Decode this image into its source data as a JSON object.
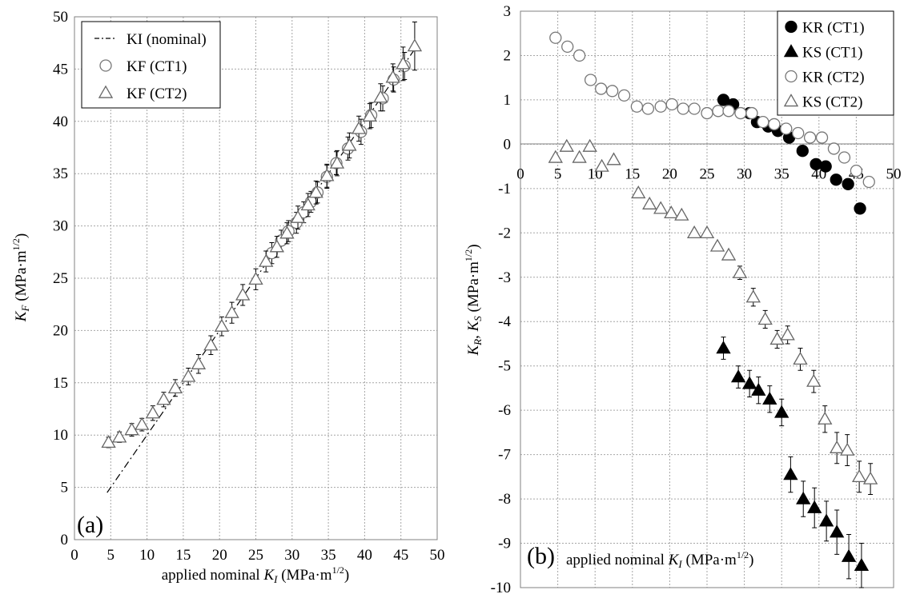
{
  "figure": {
    "panel_a": {
      "panel_label": "(a)",
      "xlabel": "applied nominal K_I (MPa·m^1/2)",
      "ylabel": "K_F (MPa·m^1/2)"
    },
    "panel_b": {
      "panel_label": "(b)",
      "xlabel": "applied nominal K_I (MPa·m^1/2)",
      "ylabel": "K_R, K_S (MPa·m^1/2)"
    }
  },
  "chart_data": [
    {
      "type": "scatter",
      "panel": "(a)",
      "title": "",
      "xlabel": "applied nominal K_I (MPa·m^1/2)",
      "ylabel": "K_F (MPa·m^1/2)",
      "xlim": [
        0,
        50
      ],
      "ylim": [
        0,
        50
      ],
      "xticks": [
        0,
        5,
        10,
        15,
        20,
        25,
        30,
        35,
        40,
        45,
        50
      ],
      "yticks": [
        0,
        5,
        10,
        15,
        20,
        25,
        30,
        35,
        40,
        45,
        50
      ],
      "grid": "dotted",
      "legend_position": "top-left",
      "series": [
        {
          "name": "KI (nominal)",
          "marker": "dash-dot-line",
          "color": "#000000",
          "points": [
            [
              4.5,
              4.5
            ],
            [
              47,
              47
            ]
          ]
        },
        {
          "name": "KF (CT1)",
          "marker": "open-circle",
          "color": "#000000",
          "points": [
            [
              27.2,
              27.4,
              1.0
            ],
            [
              28.5,
              28.6,
              1.0
            ],
            [
              29.5,
              29.5,
              1.0
            ],
            [
              30.6,
              30.3,
              1.0
            ],
            [
              31.6,
              31.3,
              1.0
            ],
            [
              32.6,
              32.3,
              1.0
            ],
            [
              33.5,
              33.2,
              1.0
            ],
            [
              34.8,
              34.7,
              1.1
            ],
            [
              36.1,
              36.0,
              1.1
            ],
            [
              37.7,
              37.4,
              1.1
            ],
            [
              39.5,
              39.0,
              1.2
            ],
            [
              40.9,
              40.6,
              1.2
            ],
            [
              42.5,
              42.2,
              1.2
            ],
            [
              44.0,
              44.0,
              1.2
            ],
            [
              45.5,
              45.3,
              1.3
            ]
          ]
        },
        {
          "name": "KF (CT2)",
          "marker": "open-triangle",
          "color": "#000000",
          "points": [
            [
              4.7,
              9.3,
              0.5
            ],
            [
              6.2,
              9.8,
              0.5
            ],
            [
              7.9,
              10.5,
              0.6
            ],
            [
              9.3,
              11.0,
              0.6
            ],
            [
              10.8,
              12.1,
              0.7
            ],
            [
              12.3,
              13.4,
              0.7
            ],
            [
              13.9,
              14.5,
              0.8
            ],
            [
              15.7,
              15.6,
              0.8
            ],
            [
              17.1,
              16.8,
              0.9
            ],
            [
              18.8,
              18.6,
              0.9
            ],
            [
              20.3,
              20.4,
              0.9
            ],
            [
              21.7,
              21.7,
              1.0
            ],
            [
              23.2,
              23.4,
              1.0
            ],
            [
              25.0,
              24.9,
              1.0
            ],
            [
              26.4,
              26.6,
              1.0
            ],
            [
              27.9,
              28.0,
              1.0
            ],
            [
              29.3,
              29.3,
              1.0
            ],
            [
              30.8,
              30.8,
              1.1
            ],
            [
              32.2,
              32.0,
              1.1
            ],
            [
              33.3,
              33.2,
              1.1
            ],
            [
              34.8,
              34.8,
              1.1
            ],
            [
              36.2,
              36.0,
              1.2
            ],
            [
              37.9,
              37.7,
              1.2
            ],
            [
              39.2,
              39.3,
              1.2
            ],
            [
              40.7,
              40.5,
              1.2
            ],
            [
              42.2,
              42.3,
              1.3
            ],
            [
              43.9,
              44.2,
              1.3
            ],
            [
              45.3,
              45.5,
              1.6
            ],
            [
              46.9,
              47.2,
              2.3
            ]
          ]
        }
      ],
      "point_format": "[x, y, error_bar_halfwidth]"
    },
    {
      "type": "scatter",
      "panel": "(b)",
      "title": "",
      "xlabel": "applied nominal K_I (MPa·m^1/2)",
      "ylabel": "K_R, K_S (MPa·m^1/2)",
      "xlim": [
        0,
        50
      ],
      "ylim": [
        -10,
        3
      ],
      "xticks": [
        0,
        5,
        10,
        15,
        20,
        25,
        30,
        35,
        40,
        45,
        50
      ],
      "yticks": [
        -10,
        -9,
        -8,
        -7,
        -6,
        -5,
        -4,
        -3,
        -2,
        -1,
        0,
        1,
        2,
        3
      ],
      "x_axis_crosses_at": 0,
      "grid": "dotted",
      "legend_position": "top-right",
      "series": [
        {
          "name": "KR (CT1)",
          "marker": "filled-circle",
          "color": "#000000",
          "points": [
            [
              27.2,
              1.0,
              0
            ],
            [
              28.5,
              0.9,
              0
            ],
            [
              30.7,
              0.7,
              0
            ],
            [
              31.7,
              0.5,
              0
            ],
            [
              33.2,
              0.4,
              0
            ],
            [
              34.5,
              0.3,
              0
            ],
            [
              36.0,
              0.15,
              0
            ],
            [
              37.8,
              -0.15,
              0
            ],
            [
              39.6,
              -0.45,
              0
            ],
            [
              40.9,
              -0.5,
              0
            ],
            [
              42.3,
              -0.8,
              0
            ],
            [
              43.9,
              -0.9,
              0
            ],
            [
              45.5,
              -1.45,
              0
            ]
          ]
        },
        {
          "name": "KS (CT1)",
          "marker": "filled-triangle",
          "color": "#000000",
          "points": [
            [
              27.2,
              -4.6,
              0.25
            ],
            [
              29.2,
              -5.25,
              0.25
            ],
            [
              30.7,
              -5.4,
              0.3
            ],
            [
              31.9,
              -5.55,
              0.3
            ],
            [
              33.4,
              -5.75,
              0.3
            ],
            [
              35.0,
              -6.05,
              0.3
            ],
            [
              36.2,
              -7.45,
              0.4
            ],
            [
              37.9,
              -8.0,
              0.4
            ],
            [
              39.4,
              -8.2,
              0.45
            ],
            [
              41.0,
              -8.5,
              0.45
            ],
            [
              42.4,
              -8.75,
              0.5
            ],
            [
              44.0,
              -9.3,
              0.5
            ],
            [
              45.7,
              -9.5,
              0.5
            ]
          ]
        },
        {
          "name": "KR (CT2)",
          "marker": "open-circle",
          "color": "#000000",
          "points": [
            [
              4.7,
              2.4,
              0
            ],
            [
              6.3,
              2.2,
              0
            ],
            [
              7.9,
              2.0,
              0
            ],
            [
              9.4,
              1.45,
              0
            ],
            [
              10.8,
              1.25,
              0
            ],
            [
              12.3,
              1.2,
              0
            ],
            [
              13.9,
              1.1,
              0
            ],
            [
              15.6,
              0.85,
              0
            ],
            [
              17.1,
              0.8,
              0
            ],
            [
              18.8,
              0.85,
              0
            ],
            [
              20.3,
              0.9,
              0
            ],
            [
              21.8,
              0.8,
              0
            ],
            [
              23.3,
              0.8,
              0
            ],
            [
              25.0,
              0.7,
              0
            ],
            [
              26.5,
              0.75,
              0
            ],
            [
              27.9,
              0.75,
              0
            ],
            [
              29.5,
              0.7,
              0
            ],
            [
              31.0,
              0.7,
              0
            ],
            [
              32.5,
              0.5,
              0
            ],
            [
              34.0,
              0.45,
              0
            ],
            [
              35.6,
              0.35,
              0
            ],
            [
              37.2,
              0.25,
              0
            ],
            [
              38.8,
              0.15,
              0
            ],
            [
              40.4,
              0.15,
              0
            ],
            [
              42.0,
              -0.1,
              0
            ],
            [
              43.4,
              -0.3,
              0
            ],
            [
              45.0,
              -0.6,
              0
            ],
            [
              46.7,
              -0.85,
              0
            ]
          ]
        },
        {
          "name": "KS (CT2)",
          "marker": "open-triangle",
          "color": "#000000",
          "points": [
            [
              4.7,
              -0.3,
              0
            ],
            [
              6.2,
              -0.05,
              0
            ],
            [
              7.9,
              -0.3,
              0
            ],
            [
              9.3,
              -0.05,
              0
            ],
            [
              10.9,
              -0.5,
              0
            ],
            [
              12.5,
              -0.35,
              0
            ],
            [
              15.8,
              -1.1,
              0
            ],
            [
              17.3,
              -1.35,
              0
            ],
            [
              18.8,
              -1.45,
              0
            ],
            [
              20.2,
              -1.55,
              0
            ],
            [
              21.6,
              -1.6,
              0
            ],
            [
              23.3,
              -2.0,
              0
            ],
            [
              25.0,
              -2.0,
              0
            ],
            [
              26.4,
              -2.3,
              0
            ],
            [
              27.9,
              -2.5,
              0
            ],
            [
              29.4,
              -2.9,
              0.15
            ],
            [
              31.2,
              -3.45,
              0.2
            ],
            [
              32.8,
              -3.95,
              0.2
            ],
            [
              34.4,
              -4.4,
              0.2
            ],
            [
              35.8,
              -4.3,
              0.2
            ],
            [
              37.5,
              -4.85,
              0.25
            ],
            [
              39.3,
              -5.35,
              0.25
            ],
            [
              40.8,
              -6.2,
              0.3
            ],
            [
              42.4,
              -6.85,
              0.35
            ],
            [
              43.8,
              -6.9,
              0.35
            ],
            [
              45.4,
              -7.5,
              0.35
            ],
            [
              46.9,
              -7.55,
              0.35
            ]
          ]
        }
      ],
      "point_format": "[x, y, error_bar_halfwidth]"
    }
  ]
}
